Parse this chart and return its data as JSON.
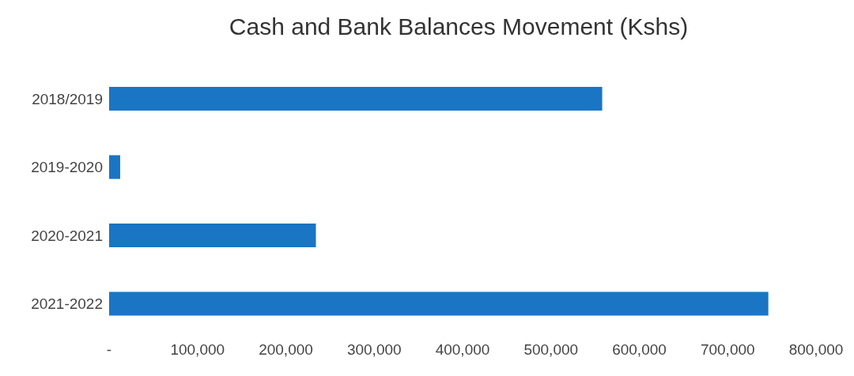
{
  "chart_data": {
    "type": "bar",
    "orientation": "horizontal",
    "title": "Cash and Bank Balances Movement (Kshs)",
    "categories": [
      "2018/2019",
      "2019-2020",
      "2020-2021",
      "2021-2022"
    ],
    "values": [
      558000,
      12500,
      234000,
      746000
    ],
    "color": "#1a75c4",
    "xlim": [
      0,
      800000
    ],
    "xticks": [
      {
        "value": 0,
        "label": "-"
      },
      {
        "value": 100000,
        "label": "100,000"
      },
      {
        "value": 200000,
        "label": "200,000"
      },
      {
        "value": 300000,
        "label": "300,000"
      },
      {
        "value": 400000,
        "label": "400,000"
      },
      {
        "value": 500000,
        "label": "500,000"
      },
      {
        "value": 600000,
        "label": "600,000"
      },
      {
        "value": 700000,
        "label": "700,000"
      },
      {
        "value": 800000,
        "label": "800,000"
      }
    ],
    "grid": false,
    "legend": false
  }
}
